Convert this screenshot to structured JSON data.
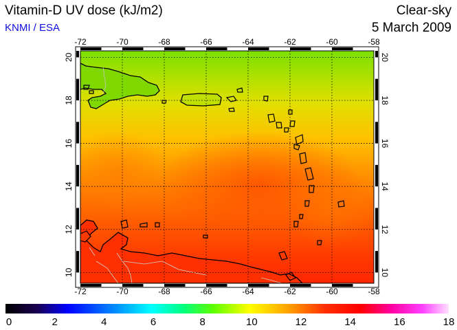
{
  "header": {
    "title": "Vitamin-D UV dose (kJ/m2)",
    "organization": "KNMI / ESA",
    "condition": "Clear-sky",
    "date": "5 March 2009"
  },
  "map": {
    "lon_ticks": [
      "-72",
      "-70",
      "-68",
      "-66",
      "-64",
      "-62",
      "-60",
      "-58"
    ],
    "lat_ticks": [
      "10",
      "12",
      "14",
      "16",
      "18",
      "20"
    ],
    "lon_range": [
      -72,
      -58
    ],
    "lat_range": [
      9.5,
      20.3
    ],
    "gridlines": true,
    "field_colors": {
      "north": "#80e000",
      "middle": "#ffb000",
      "south": "#ff3a00",
      "hotspot": "#ff4400"
    },
    "coastline_color": "#000000",
    "border_color": "#d0d0d0"
  },
  "colorbar": {
    "labels": [
      "0",
      "2",
      "4",
      "6",
      "8",
      "10",
      "12",
      "14",
      "16",
      "18"
    ],
    "range": [
      0,
      18
    ]
  }
}
